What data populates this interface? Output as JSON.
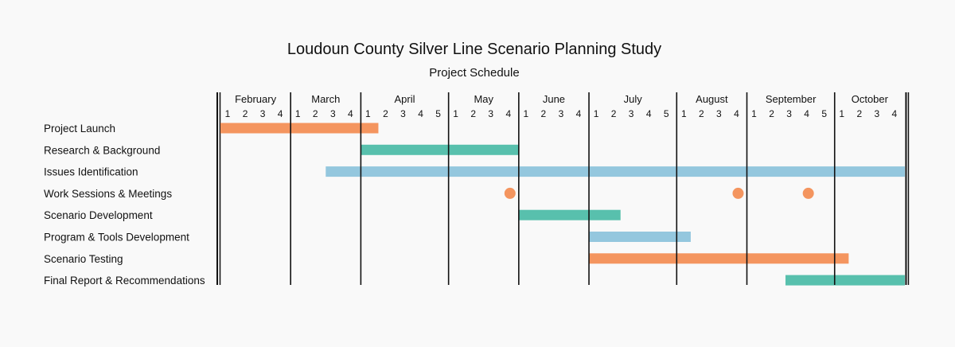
{
  "chart_data": {
    "type": "gantt",
    "title": "Loudoun County Silver Line Scenario Planning Study",
    "subtitle": "Project Schedule",
    "months": [
      {
        "name": "February",
        "weeks": 4
      },
      {
        "name": "March",
        "weeks": 4
      },
      {
        "name": "April",
        "weeks": 5
      },
      {
        "name": "May",
        "weeks": 4
      },
      {
        "name": "June",
        "weeks": 4
      },
      {
        "name": "July",
        "weeks": 5
      },
      {
        "name": "August",
        "weeks": 4
      },
      {
        "name": "September",
        "weeks": 5
      },
      {
        "name": "October",
        "weeks": 4
      }
    ],
    "tasks": [
      {
        "name": "Project Launch",
        "bars": [
          {
            "start": 0,
            "end": 9
          }
        ],
        "color": "#f4955f"
      },
      {
        "name": "Research & Background",
        "bars": [
          {
            "start": 8,
            "end": 17
          }
        ],
        "color": "#58c0ad"
      },
      {
        "name": "Issues Identification",
        "bars": [
          {
            "start": 6,
            "end": 39
          }
        ],
        "color": "#94c7de"
      },
      {
        "name": "Work Sessions & Meetings",
        "milestones": [
          16.5,
          29.5,
          33.5
        ],
        "color": "#f4955f"
      },
      {
        "name": "Scenario Development",
        "bars": [
          {
            "start": 17,
            "end": 22.8
          }
        ],
        "color": "#58c0ad"
      },
      {
        "name": "Program & Tools Development",
        "bars": [
          {
            "start": 21,
            "end": 26.8
          }
        ],
        "color": "#94c7de"
      },
      {
        "name": "Scenario Testing",
        "bars": [
          {
            "start": 21,
            "end": 35.8
          }
        ],
        "color": "#f4955f"
      },
      {
        "name": "Final Report & Recommendations",
        "bars": [
          {
            "start": 32.2,
            "end": 39
          }
        ],
        "color": "#58c0ad"
      }
    ]
  }
}
